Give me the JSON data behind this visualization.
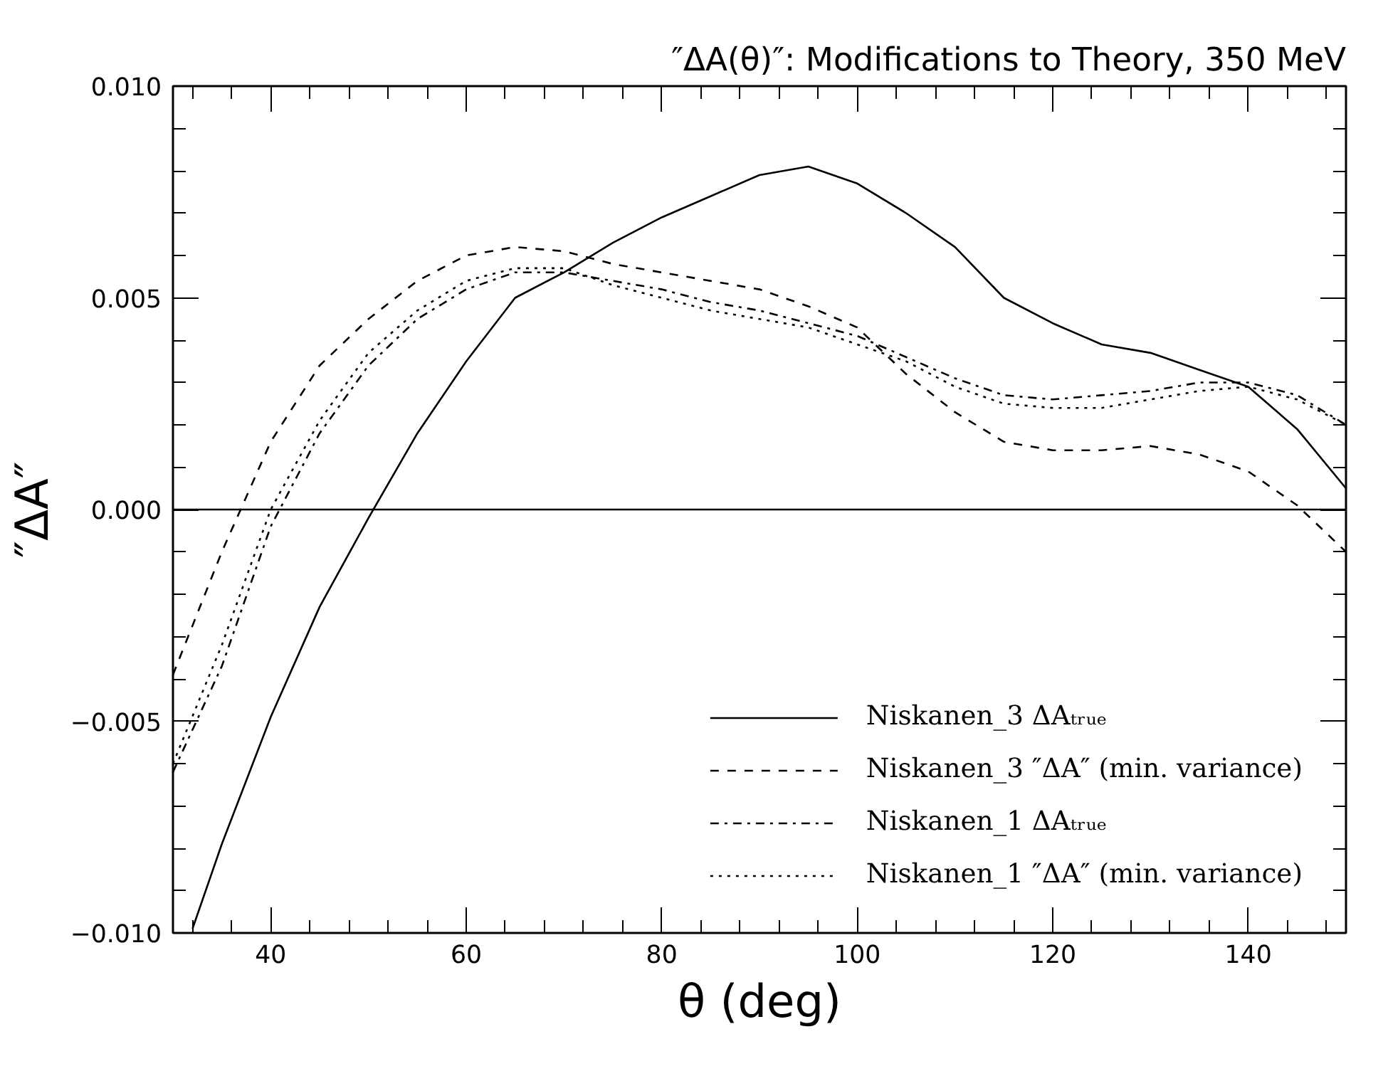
{
  "chart_data": {
    "type": "line",
    "title": "″ΔA(θ)″: Modifications to Theory, 350 MeV",
    "xlabel": "θ (deg)",
    "ylabel": "″ΔA″",
    "xlim": [
      30,
      150
    ],
    "xticks": [
      40,
      60,
      80,
      100,
      120,
      140
    ],
    "ylim": [
      -0.01,
      0.01
    ],
    "yticks": [
      {
        "value": -0.01,
        "label": "−0.010"
      },
      {
        "value": -0.005,
        "label": "−0.005"
      },
      {
        "value": 0,
        "label": "0.000"
      },
      {
        "value": 0.005,
        "label": "0.005"
      },
      {
        "value": 0.01,
        "label": "0.010"
      }
    ],
    "grid": false,
    "legend": "bottom right",
    "marker": "none",
    "ref_lines": [
      {
        "axis": "y",
        "value": 0,
        "color": "#000000",
        "line_style": "solid"
      }
    ],
    "series": [
      {
        "name": "Niskanen_3 ΔAₜᵣᵤₑ",
        "color": "#000000",
        "line_style": "solid",
        "x": [
          32,
          35,
          40,
          45,
          50,
          55,
          60,
          65,
          70,
          75,
          80,
          85,
          90,
          95,
          100,
          105,
          110,
          115,
          120,
          125,
          130,
          135,
          140,
          145,
          150
        ],
        "values": [
          -0.0099,
          -0.0079,
          -0.0049,
          -0.0023,
          -0.0002,
          0.0018,
          0.0035,
          0.005,
          0.0056,
          0.0063,
          0.0069,
          0.0074,
          0.0079,
          0.0081,
          0.0077,
          0.007,
          0.0062,
          0.005,
          0.0044,
          0.0039,
          0.0037,
          0.0033,
          0.0029,
          0.0019,
          0.0005
        ]
      },
      {
        "name": "Niskanen_3 ″ΔA″ (min. variance)",
        "color": "#000000",
        "line_style": "dashed",
        "x": [
          30,
          35,
          40,
          45,
          50,
          55,
          60,
          65,
          70,
          75,
          80,
          85,
          90,
          95,
          100,
          105,
          110,
          115,
          120,
          125,
          130,
          135,
          140,
          145,
          150
        ],
        "values": [
          -0.0039,
          -0.001,
          0.0016,
          0.0034,
          0.0045,
          0.0054,
          0.006,
          0.0062,
          0.0061,
          0.0058,
          0.0056,
          0.0054,
          0.0052,
          0.0048,
          0.0043,
          0.0032,
          0.0023,
          0.0016,
          0.0014,
          0.0014,
          0.0015,
          0.0013,
          0.0009,
          0.0001,
          -0.001
        ]
      },
      {
        "name": "Niskanen_1 ΔAₜᵣᵤₑ",
        "color": "#000000",
        "line_style": "dashdot",
        "x": [
          30,
          35,
          40,
          45,
          50,
          55,
          60,
          65,
          70,
          75,
          80,
          85,
          90,
          95,
          100,
          105,
          110,
          115,
          120,
          125,
          130,
          135,
          140,
          145,
          150
        ],
        "values": [
          -0.0062,
          -0.0037,
          -0.0004,
          0.0018,
          0.0034,
          0.0045,
          0.0052,
          0.0056,
          0.0056,
          0.0054,
          0.0052,
          0.0049,
          0.0047,
          0.0044,
          0.0041,
          0.0036,
          0.0031,
          0.0027,
          0.0026,
          0.0027,
          0.0028,
          0.003,
          0.003,
          0.0027,
          0.002
        ]
      },
      {
        "name": "Niskanen_1 ″ΔA″ (min. variance)",
        "color": "#000000",
        "line_style": "dotted",
        "x": [
          30,
          35,
          40,
          45,
          50,
          55,
          60,
          65,
          70,
          75,
          80,
          85,
          90,
          95,
          100,
          105,
          110,
          115,
          120,
          125,
          130,
          135,
          140,
          145,
          150
        ],
        "values": [
          -0.006,
          -0.0032,
          0.0,
          0.0021,
          0.0037,
          0.0047,
          0.0054,
          0.0057,
          0.0057,
          0.0053,
          0.005,
          0.0047,
          0.0045,
          0.0043,
          0.0039,
          0.0035,
          0.0029,
          0.0025,
          0.0024,
          0.0024,
          0.0026,
          0.0028,
          0.0029,
          0.0026,
          0.002
        ]
      }
    ]
  }
}
